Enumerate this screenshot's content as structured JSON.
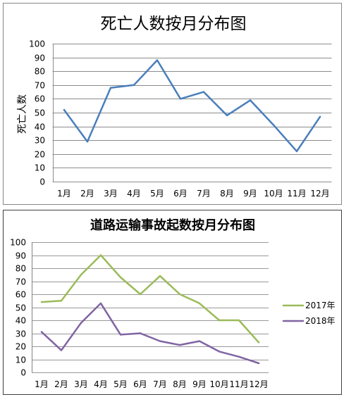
{
  "chart_data": [
    {
      "type": "line",
      "title": "死亡人数按月分布图",
      "xlabel": "",
      "ylabel": "死亡人数",
      "categories": [
        "1月",
        "2月",
        "3月",
        "4月",
        "5月",
        "6月",
        "7月",
        "8月",
        "9月",
        "10月",
        "11月",
        "12月"
      ],
      "ylim": [
        0,
        100
      ],
      "yticks": [
        0,
        10,
        20,
        30,
        40,
        50,
        60,
        70,
        80,
        90,
        100
      ],
      "grid": true,
      "legend": "none",
      "series": [
        {
          "values": [
            52,
            29,
            68,
            70,
            88,
            60,
            65,
            48,
            59,
            41,
            22,
            47
          ],
          "color": "#4a7ebb"
        }
      ]
    },
    {
      "type": "line",
      "title": "道路运输事故起数按月分布图",
      "xlabel": "",
      "ylabel": "",
      "categories": [
        "1月",
        "2月",
        "3月",
        "4月",
        "5月",
        "6月",
        "7月",
        "8月",
        "9月",
        "10月",
        "11月",
        "12月"
      ],
      "ylim": [
        0,
        100
      ],
      "yticks": [
        0,
        10,
        20,
        30,
        40,
        50,
        60,
        70,
        80,
        90,
        100
      ],
      "grid": true,
      "legend": "right",
      "series": [
        {
          "name": "2017年",
          "values": [
            54,
            55,
            75,
            90,
            73,
            60,
            74,
            60,
            53,
            40,
            40,
            23
          ],
          "color": "#9bbb59"
        },
        {
          "name": "2018年",
          "values": [
            31,
            17,
            38,
            53,
            29,
            30,
            24,
            21,
            24,
            16,
            12,
            7
          ],
          "color": "#8064a2"
        }
      ]
    }
  ]
}
